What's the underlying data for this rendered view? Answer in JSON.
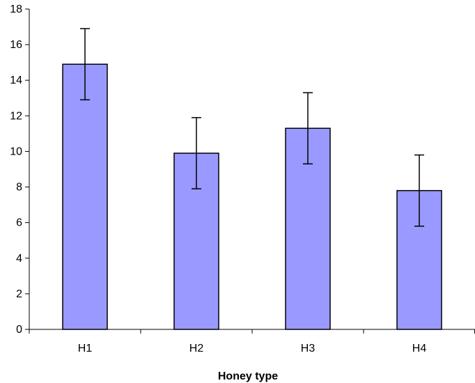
{
  "chart_data": {
    "type": "bar",
    "title": "",
    "xlabel": "Honey type",
    "ylabel": "",
    "categories": [
      "H1",
      "H2",
      "H3",
      "H4"
    ],
    "values": [
      14.9,
      9.9,
      11.3,
      7.8
    ],
    "error": [
      2.0,
      2.0,
      2.0,
      2.0
    ],
    "ylim": [
      0,
      18
    ],
    "yticks": [
      0,
      2,
      4,
      6,
      8,
      10,
      12,
      14,
      16,
      18
    ],
    "grid": false,
    "legend": "none",
    "bar_color": "#9999ff",
    "bar_stroke": "#000000"
  }
}
